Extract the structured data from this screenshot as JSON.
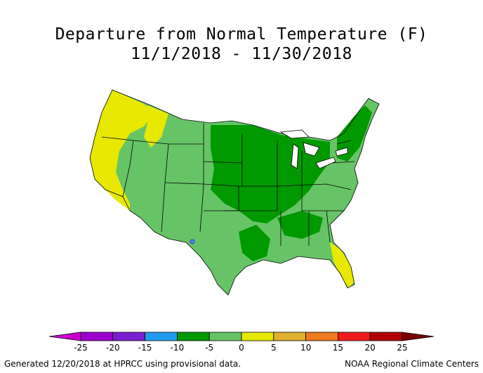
{
  "title": {
    "line1": "Departure from Normal Temperature (F)",
    "line2": "11/1/2018 - 11/30/2018"
  },
  "legend": {
    "ticks": [
      "-25",
      "-20",
      "-15",
      "-10",
      "-5",
      "0",
      "5",
      "10",
      "15",
      "20",
      "25"
    ],
    "bins": [
      {
        "color": "#cc00cc",
        "range": "< -25"
      },
      {
        "color": "#9e00cc",
        "range": "-25 to -20"
      },
      {
        "color": "#7a1fd0",
        "range": "-20 to -15"
      },
      {
        "color": "#1f9cf0",
        "range": "-15 to -10"
      },
      {
        "color": "#009900",
        "range": "-10 to -5"
      },
      {
        "color": "#66c466",
        "range": "-5 to 0"
      },
      {
        "color": "#e8e800",
        "range": "0 to 5"
      },
      {
        "color": "#e0b030",
        "range": "5 to 10"
      },
      {
        "color": "#f07a1f",
        "range": "10 to 15"
      },
      {
        "color": "#f01c1c",
        "range": "15 to 20"
      },
      {
        "color": "#b30000",
        "range": "20 to 25"
      },
      {
        "color": "#7a0000",
        "range": "> 25"
      }
    ]
  },
  "map": {
    "region": "Contiguous United States",
    "colors": {
      "cool_strong": "#009900",
      "cool_mild": "#66c466",
      "warm_mild": "#e8e800",
      "outline": "#000000"
    }
  },
  "footer": {
    "left": "Generated 12/20/2018 at HPRCC using provisional data.",
    "right": "NOAA Regional Climate Centers"
  }
}
